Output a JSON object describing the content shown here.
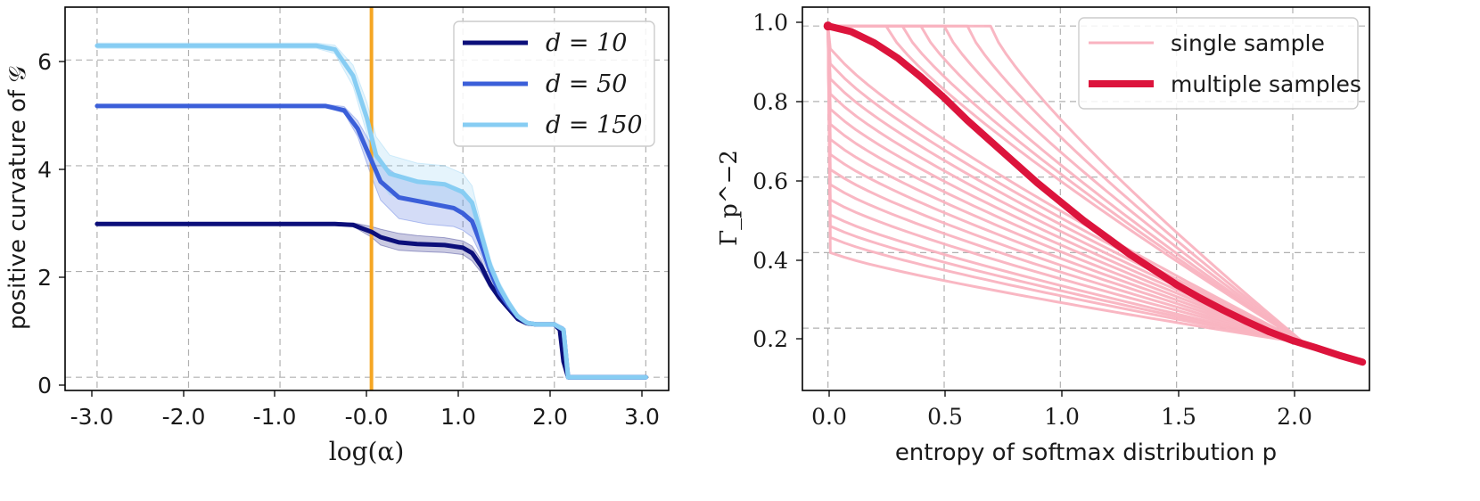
{
  "chart_data": [
    {
      "type": "line",
      "xlabel": "log(α)",
      "ylabel": "positive curvature of 𝒢",
      "xlim": [
        -3.35,
        3.25
      ],
      "ylim": [
        -0.25,
        7.0
      ],
      "xticks": [
        -3.0,
        -2.0,
        -1.0,
        0.0,
        1.0,
        2.0,
        3.0
      ],
      "xtick_labels": [
        "-3.0",
        "-2.0",
        "-1.0",
        "-0.0",
        "1.0",
        "2.0",
        "3.0"
      ],
      "yticks": [
        0,
        2,
        4,
        6
      ],
      "ytick_labels": [
        "0",
        "2",
        "4",
        "6"
      ],
      "grid": true,
      "vline": {
        "x": 0.0,
        "color": "#f5a623"
      },
      "legend": {
        "position": "top-right",
        "entries": [
          "d = 10",
          "d = 50",
          "d = 150"
        ]
      },
      "series": [
        {
          "name": "d = 10",
          "color": "#0c0f7a",
          "x": [
            -3.0,
            -1.0,
            -0.4,
            -0.2,
            0.0,
            0.1,
            0.3,
            0.5,
            0.8,
            1.0,
            1.1,
            1.2,
            1.3,
            1.4,
            1.5,
            1.6,
            1.7,
            1.8,
            2.0,
            2.06,
            2.1,
            2.15,
            2.2,
            3.0
          ],
          "y": [
            2.9,
            2.9,
            2.9,
            2.88,
            2.75,
            2.65,
            2.55,
            2.52,
            2.5,
            2.45,
            2.35,
            2.1,
            1.75,
            1.5,
            1.3,
            1.1,
            1.02,
            1.0,
            1.0,
            0.9,
            0.3,
            0.0,
            0.0,
            0.0
          ],
          "band_lo": [
            2.88,
            2.88,
            2.88,
            2.85,
            2.65,
            2.5,
            2.4,
            2.38,
            2.36,
            2.32,
            2.2,
            1.98,
            1.68,
            1.45,
            1.27,
            1.08,
            1.0,
            0.98,
            0.98,
            0.85,
            0.25,
            0.0,
            0.0,
            0.0
          ],
          "band_hi": [
            2.92,
            2.92,
            2.92,
            2.92,
            2.85,
            2.8,
            2.72,
            2.68,
            2.64,
            2.58,
            2.48,
            2.22,
            1.82,
            1.55,
            1.33,
            1.12,
            1.04,
            1.02,
            1.02,
            0.95,
            0.35,
            0.0,
            0.0,
            0.0
          ]
        },
        {
          "name": "d = 50",
          "color": "#3b5fd9",
          "x": [
            -3.0,
            -1.0,
            -0.5,
            -0.3,
            -0.15,
            0.0,
            0.1,
            0.3,
            0.6,
            0.9,
            1.0,
            1.1,
            1.2,
            1.3,
            1.4,
            1.5,
            1.6,
            1.7,
            1.8,
            2.0,
            2.1,
            2.15,
            2.2,
            3.0
          ],
          "y": [
            5.13,
            5.13,
            5.13,
            5.05,
            4.7,
            4.1,
            3.7,
            3.4,
            3.3,
            3.2,
            3.1,
            2.95,
            2.5,
            2.0,
            1.6,
            1.35,
            1.15,
            1.03,
            1.0,
            1.0,
            0.9,
            0.0,
            0.0,
            0.0
          ],
          "band_lo": [
            5.1,
            5.1,
            5.1,
            5.0,
            4.55,
            3.8,
            3.35,
            3.0,
            2.9,
            2.85,
            2.78,
            2.65,
            2.3,
            1.88,
            1.52,
            1.3,
            1.1,
            1.0,
            0.97,
            0.97,
            0.85,
            0.0,
            0.0,
            0.0
          ],
          "band_hi": [
            5.16,
            5.16,
            5.16,
            5.12,
            4.85,
            4.4,
            4.05,
            3.8,
            3.7,
            3.6,
            3.45,
            3.25,
            2.72,
            2.14,
            1.68,
            1.4,
            1.2,
            1.06,
            1.03,
            1.03,
            0.95,
            0.0,
            0.0,
            0.0
          ]
        },
        {
          "name": "d = 150",
          "color": "#87cdf3",
          "x": [
            -3.0,
            -1.0,
            -0.6,
            -0.4,
            -0.2,
            -0.05,
            0.05,
            0.2,
            0.5,
            0.8,
            1.0,
            1.1,
            1.2,
            1.3,
            1.4,
            1.5,
            1.6,
            1.7,
            1.8,
            2.0,
            2.1,
            2.15,
            2.2,
            3.0
          ],
          "y": [
            6.27,
            6.27,
            6.27,
            6.2,
            5.7,
            4.9,
            4.2,
            3.85,
            3.7,
            3.65,
            3.5,
            3.3,
            2.7,
            2.1,
            1.7,
            1.4,
            1.15,
            1.03,
            1.0,
            1.0,
            0.9,
            0.0,
            0.0,
            0.0
          ],
          "band_lo": [
            6.22,
            6.22,
            6.22,
            6.12,
            5.5,
            4.6,
            3.8,
            3.45,
            3.3,
            3.25,
            3.15,
            2.98,
            2.5,
            1.98,
            1.6,
            1.32,
            1.1,
            1.0,
            0.97,
            0.97,
            0.85,
            0.0,
            0.0,
            0.0
          ],
          "band_hi": [
            6.32,
            6.32,
            6.32,
            6.28,
            5.9,
            5.2,
            4.55,
            4.2,
            4.05,
            4.0,
            3.85,
            3.62,
            2.9,
            2.22,
            1.8,
            1.48,
            1.2,
            1.06,
            1.03,
            1.03,
            0.95,
            0.0,
            0.0,
            0.0
          ]
        }
      ]
    },
    {
      "type": "line",
      "xlabel": "entropy of softmax distribution p",
      "ylabel": "Γ_p^−2",
      "xlim": [
        -0.11,
        2.33
      ],
      "ylim": [
        0.035,
        1.05
      ],
      "xticks": [
        0.0,
        0.5,
        1.0,
        1.5,
        2.0
      ],
      "xtick_labels": [
        "0.0",
        "0.5",
        "1.0",
        "1.5",
        "2.0"
      ],
      "yticks": [
        0.2,
        0.4,
        0.6,
        0.8,
        1.0
      ],
      "ytick_labels": [
        "0.2",
        "0.4",
        "0.6",
        "0.8",
        "1.0"
      ],
      "grid": true,
      "legend": {
        "position": "top-right",
        "entries": [
          "single sample",
          "multiple samples"
        ]
      },
      "single_sample": {
        "name": "single sample",
        "color": "#f9b3c0",
        "x_end": 2.05,
        "y_end": 0.16,
        "curves": [
          {
            "h0": 0.7,
            "drop": 0.0
          },
          {
            "h0": 0.6,
            "drop": 0.0
          },
          {
            "h0": 0.5,
            "drop": 0.0
          },
          {
            "h0": 0.4,
            "drop": 0.0
          },
          {
            "h0": 0.32,
            "drop": 0.0
          },
          {
            "h0": 0.25,
            "drop": 0.0
          },
          {
            "h0": 0.0,
            "drop": 0.06
          },
          {
            "h0": 0.0,
            "drop": 0.1
          },
          {
            "h0": 0.0,
            "drop": 0.14
          },
          {
            "h0": 0.0,
            "drop": 0.18
          },
          {
            "h0": 0.0,
            "drop": 0.22
          },
          {
            "h0": 0.0,
            "drop": 0.26
          },
          {
            "h0": 0.0,
            "drop": 0.3
          },
          {
            "h0": 0.0,
            "drop": 0.34
          },
          {
            "h0": 0.0,
            "drop": 0.38
          },
          {
            "h0": 0.0,
            "drop": 0.42
          },
          {
            "h0": 0.0,
            "drop": 0.46
          },
          {
            "h0": 0.0,
            "drop": 0.5
          },
          {
            "h0": 0.0,
            "drop": 0.53
          },
          {
            "h0": 0.0,
            "drop": 0.56
          },
          {
            "h0": 0.0,
            "drop": 0.6
          }
        ]
      },
      "multiple_samples": {
        "name": "multiple samples",
        "color": "#dc143c",
        "x": [
          0.0,
          0.1,
          0.2,
          0.3,
          0.4,
          0.5,
          0.6,
          0.7,
          0.8,
          0.9,
          1.0,
          1.1,
          1.2,
          1.3,
          1.4,
          1.5,
          1.6,
          1.7,
          1.8,
          1.9,
          2.0,
          2.1,
          2.2,
          2.3
        ],
        "y": [
          1.0,
          0.985,
          0.955,
          0.915,
          0.865,
          0.81,
          0.75,
          0.695,
          0.64,
          0.585,
          0.535,
          0.485,
          0.44,
          0.395,
          0.355,
          0.315,
          0.28,
          0.248,
          0.218,
          0.19,
          0.167,
          0.148,
          0.128,
          0.11
        ]
      }
    }
  ]
}
